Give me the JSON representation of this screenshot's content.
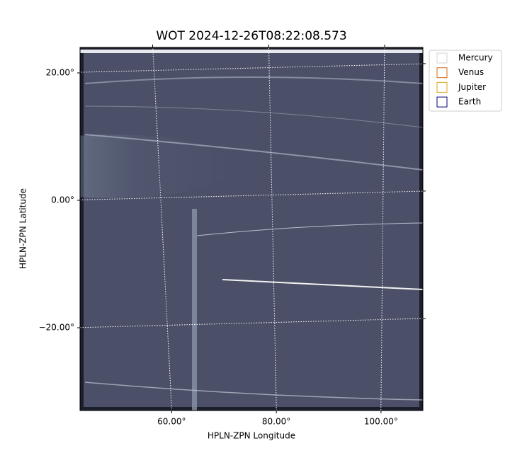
{
  "chart_data": {
    "type": "image",
    "title": "WOT 2024-12-26T08:22:08.573",
    "xlabel": "HPLN-ZPN Longitude",
    "ylabel": "HPLN-ZPN Latitude",
    "xlim": [
      42.5,
      108
    ],
    "ylim": [
      -33,
      24
    ],
    "xticks": [
      {
        "value": 60,
        "label": "60.00°"
      },
      {
        "value": 80,
        "label": "80.00°"
      },
      {
        "value": 100,
        "label": "100.00°"
      }
    ],
    "yticks": [
      {
        "value": -20,
        "label": "−20.00°"
      },
      {
        "value": 0,
        "label": "0.00°"
      },
      {
        "value": 20,
        "label": "20.00°"
      }
    ],
    "grid": true,
    "legend": "upper right outside",
    "series": [
      {
        "name": "Mercury",
        "color": "#d3d3d3"
      },
      {
        "name": "Venus",
        "color": "#d2691e"
      },
      {
        "name": "Jupiter",
        "color": "#daa520"
      },
      {
        "name": "Earth",
        "color": "#000080"
      }
    ]
  }
}
